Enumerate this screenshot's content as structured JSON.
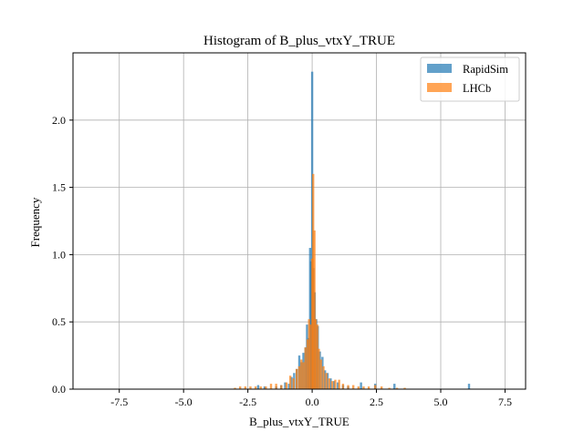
{
  "colors": {
    "rapidsim": "#1f77b4",
    "lhcb": "#ff7f0e",
    "grid": "#b0b0b0",
    "axes": "#000000",
    "background": "#ffffff"
  },
  "chart_data": {
    "type": "bar",
    "subtype": "overlaid-histogram",
    "title": "Histogram of B_plus_vtxY_TRUE",
    "xlabel": "B_plus_vtxY_TRUE",
    "ylabel": "Frequency",
    "xlim": [
      -9.3,
      8.3
    ],
    "ylim": [
      0,
      2.5
    ],
    "xticks": [
      -7.5,
      -5.0,
      -2.5,
      0.0,
      2.5,
      5.0,
      7.5
    ],
    "xtick_labels": [
      "-7.5",
      "-5.0",
      "-2.5",
      "0.0",
      "2.5",
      "5.0",
      "7.5"
    ],
    "yticks": [
      0.0,
      0.5,
      1.0,
      1.5,
      2.0
    ],
    "ytick_labels": [
      "0.0",
      "0.5",
      "1.0",
      "1.5",
      "2.0"
    ],
    "grid": true,
    "legend_position": "top-right",
    "series": [
      {
        "name": "RapidSim",
        "color": "#1f77b4",
        "opacity": 0.7,
        "bin_width": 0.085,
        "bins": [
          [
            -2.1,
            0.03
          ],
          [
            -1.85,
            0.02
          ],
          [
            -1.4,
            0.02
          ],
          [
            -1.2,
            0.03
          ],
          [
            -1.05,
            0.05
          ],
          [
            -0.9,
            0.04
          ],
          [
            -0.8,
            0.09
          ],
          [
            -0.7,
            0.12
          ],
          [
            -0.6,
            0.15
          ],
          [
            -0.5,
            0.25
          ],
          [
            -0.42,
            0.2
          ],
          [
            -0.34,
            0.27
          ],
          [
            -0.26,
            0.31
          ],
          [
            -0.2,
            0.48
          ],
          [
            -0.14,
            0.38
          ],
          [
            -0.08,
            1.05
          ],
          [
            -0.04,
            0.95
          ],
          [
            0.0,
            2.36
          ],
          [
            0.05,
            0.9
          ],
          [
            0.1,
            0.72
          ],
          [
            0.16,
            0.52
          ],
          [
            0.22,
            0.47
          ],
          [
            0.3,
            0.28
          ],
          [
            0.4,
            0.24
          ],
          [
            0.5,
            0.14
          ],
          [
            0.6,
            0.12
          ],
          [
            0.72,
            0.08
          ],
          [
            0.85,
            0.06
          ],
          [
            1.0,
            0.05
          ],
          [
            1.2,
            0.03
          ],
          [
            1.4,
            0.02
          ],
          [
            1.9,
            0.05
          ],
          [
            2.45,
            0.04
          ],
          [
            3.2,
            0.04
          ],
          [
            6.1,
            0.04
          ]
        ]
      },
      {
        "name": "LHCb",
        "color": "#ff7f0e",
        "opacity": 0.7,
        "bin_width": 0.085,
        "bins": [
          [
            -3.0,
            0.01
          ],
          [
            -2.8,
            0.02
          ],
          [
            -2.6,
            0.02
          ],
          [
            -2.4,
            0.02
          ],
          [
            -2.2,
            0.02
          ],
          [
            -2.0,
            0.02
          ],
          [
            -1.8,
            0.02
          ],
          [
            -1.6,
            0.04
          ],
          [
            -1.4,
            0.04
          ],
          [
            -1.2,
            0.03
          ],
          [
            -1.0,
            0.05
          ],
          [
            -0.85,
            0.1
          ],
          [
            -0.72,
            0.08
          ],
          [
            -0.6,
            0.15
          ],
          [
            -0.5,
            0.17
          ],
          [
            -0.42,
            0.22
          ],
          [
            -0.34,
            0.2
          ],
          [
            -0.26,
            0.31
          ],
          [
            -0.18,
            0.37
          ],
          [
            -0.12,
            0.52
          ],
          [
            -0.06,
            0.48
          ],
          [
            0.0,
            0.97
          ],
          [
            0.04,
            1.6
          ],
          [
            0.09,
            1.18
          ],
          [
            0.14,
            0.52
          ],
          [
            0.2,
            0.48
          ],
          [
            0.26,
            0.3
          ],
          [
            0.34,
            0.22
          ],
          [
            0.44,
            0.17
          ],
          [
            0.55,
            0.12
          ],
          [
            0.66,
            0.08
          ],
          [
            0.78,
            0.06
          ],
          [
            0.9,
            0.07
          ],
          [
            1.05,
            0.07
          ],
          [
            1.2,
            0.04
          ],
          [
            1.4,
            0.03
          ],
          [
            1.6,
            0.03
          ],
          [
            1.8,
            0.02
          ],
          [
            2.0,
            0.02
          ],
          [
            2.2,
            0.02
          ],
          [
            2.45,
            0.03
          ],
          [
            2.7,
            0.02
          ],
          [
            3.0,
            0.01
          ],
          [
            3.3,
            0.01
          ],
          [
            3.6,
            0.01
          ]
        ]
      }
    ]
  }
}
